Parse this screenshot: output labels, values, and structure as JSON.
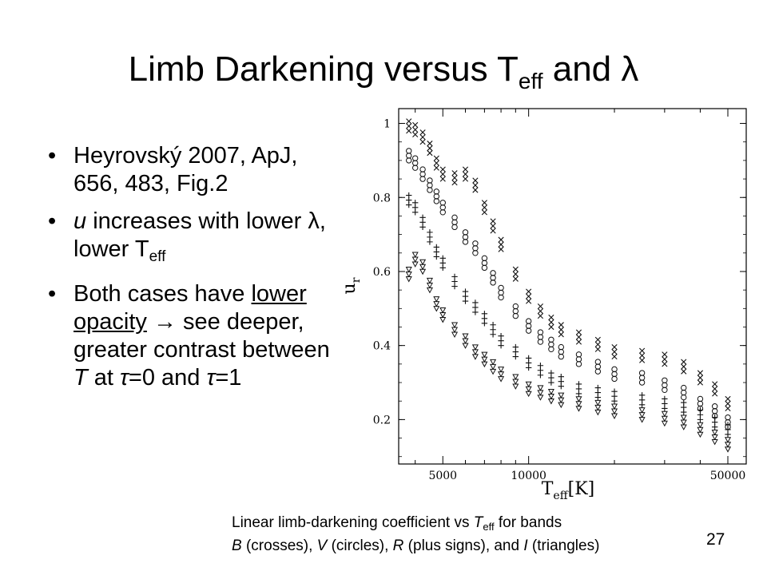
{
  "slide": {
    "title_main": "Limb Darkening versus T",
    "title_sub": "eff",
    "title_tail": " and λ",
    "page_number": "27"
  },
  "bullets": {
    "b1": "Heyrovský 2007, ApJ, 656, 483, Fig.2",
    "b2_italic": "u",
    "b2_text": " increases with lower λ, lower T",
    "b2_sub": "eff",
    "b3_a": "Both cases have ",
    "b3_underlined": "lower opacity",
    "b3_b": " → see deeper, greater contrast between ",
    "b3_T": "T",
    "b3_c": " at ",
    "b3_tau1": "τ",
    "b3_d": "=0 and ",
    "b3_tau2": "τ",
    "b3_e": "=1"
  },
  "caption": {
    "line1_a": "Linear limb-darkening coefficient vs ",
    "line1_T": "T",
    "line1_sub": "eff",
    "line1_b": " for bands",
    "B": "B",
    "B_desc": " (crosses), ",
    "V": "V",
    "V_desc": " (circles), ",
    "R": "R",
    "R_desc": " (plus signs), and ",
    "I": "I",
    "I_desc": " (triangles)"
  },
  "chart_data": {
    "type": "scatter",
    "xlabel": "T",
    "xlabel_sub": "eff",
    "xlabel_unit": "[K]",
    "ylabel": "u",
    "ylabel_sub": "r",
    "x_scale": "log",
    "xlim": [
      3500,
      58000
    ],
    "ylim": [
      0.08,
      1.04
    ],
    "x_ticks": [
      5000,
      10000,
      50000
    ],
    "x_tick_labels": [
      "5000",
      "10000",
      "50000"
    ],
    "y_ticks": [
      0.2,
      0.4,
      0.6,
      0.8,
      1.0
    ],
    "y_tick_labels": [
      "0.2",
      "0.4",
      "0.6",
      "0.8",
      "1"
    ],
    "series": [
      {
        "marker": "cross",
        "temps": [
          3800,
          4000,
          4250,
          4500,
          4750,
          5000,
          5500,
          6000,
          6500,
          7000,
          7500,
          8000,
          9000,
          10000,
          11000,
          12000,
          13000,
          15000,
          17500,
          20000,
          25000,
          30000,
          35000,
          40000,
          45000,
          50000
        ],
        "values": [
          0.98,
          0.97,
          0.95,
          0.92,
          0.88,
          0.85,
          0.84,
          0.85,
          0.82,
          0.76,
          0.71,
          0.66,
          0.58,
          0.52,
          0.48,
          0.45,
          0.43,
          0.41,
          0.39,
          0.37,
          0.36,
          0.35,
          0.33,
          0.3,
          0.27,
          0.23
        ]
      },
      {
        "marker": "circle",
        "temps": [
          3800,
          4000,
          4250,
          4500,
          4750,
          5000,
          5500,
          6000,
          6500,
          7000,
          7500,
          8000,
          9000,
          10000,
          11000,
          12000,
          13000,
          15000,
          17500,
          20000,
          25000,
          30000,
          35000,
          40000,
          45000,
          50000
        ],
        "values": [
          0.9,
          0.88,
          0.85,
          0.82,
          0.79,
          0.76,
          0.72,
          0.68,
          0.65,
          0.61,
          0.57,
          0.53,
          0.48,
          0.44,
          0.41,
          0.39,
          0.37,
          0.35,
          0.33,
          0.31,
          0.3,
          0.28,
          0.26,
          0.23,
          0.21,
          0.18
        ]
      },
      {
        "marker": "plus",
        "temps": [
          3800,
          4000,
          4250,
          4500,
          4750,
          5000,
          5500,
          6000,
          6500,
          7000,
          7500,
          8000,
          9000,
          10000,
          11000,
          12000,
          13000,
          15000,
          17500,
          20000,
          25000,
          30000,
          35000,
          40000,
          45000,
          50000
        ],
        "values": [
          0.78,
          0.76,
          0.72,
          0.68,
          0.64,
          0.61,
          0.56,
          0.52,
          0.49,
          0.46,
          0.43,
          0.4,
          0.37,
          0.34,
          0.32,
          0.3,
          0.29,
          0.27,
          0.26,
          0.25,
          0.24,
          0.23,
          0.22,
          0.2,
          0.18,
          0.16
        ]
      },
      {
        "marker": "triangle",
        "temps": [
          3800,
          4000,
          4250,
          4500,
          4750,
          5000,
          5500,
          6000,
          6500,
          7000,
          7500,
          8000,
          9000,
          10000,
          11000,
          12000,
          13000,
          15000,
          17500,
          20000,
          25000,
          30000,
          35000,
          40000,
          45000,
          50000
        ],
        "values": [
          0.58,
          0.62,
          0.6,
          0.55,
          0.5,
          0.47,
          0.43,
          0.4,
          0.37,
          0.35,
          0.33,
          0.31,
          0.29,
          0.27,
          0.26,
          0.25,
          0.24,
          0.23,
          0.22,
          0.21,
          0.2,
          0.19,
          0.18,
          0.16,
          0.14,
          0.12
        ]
      }
    ]
  }
}
